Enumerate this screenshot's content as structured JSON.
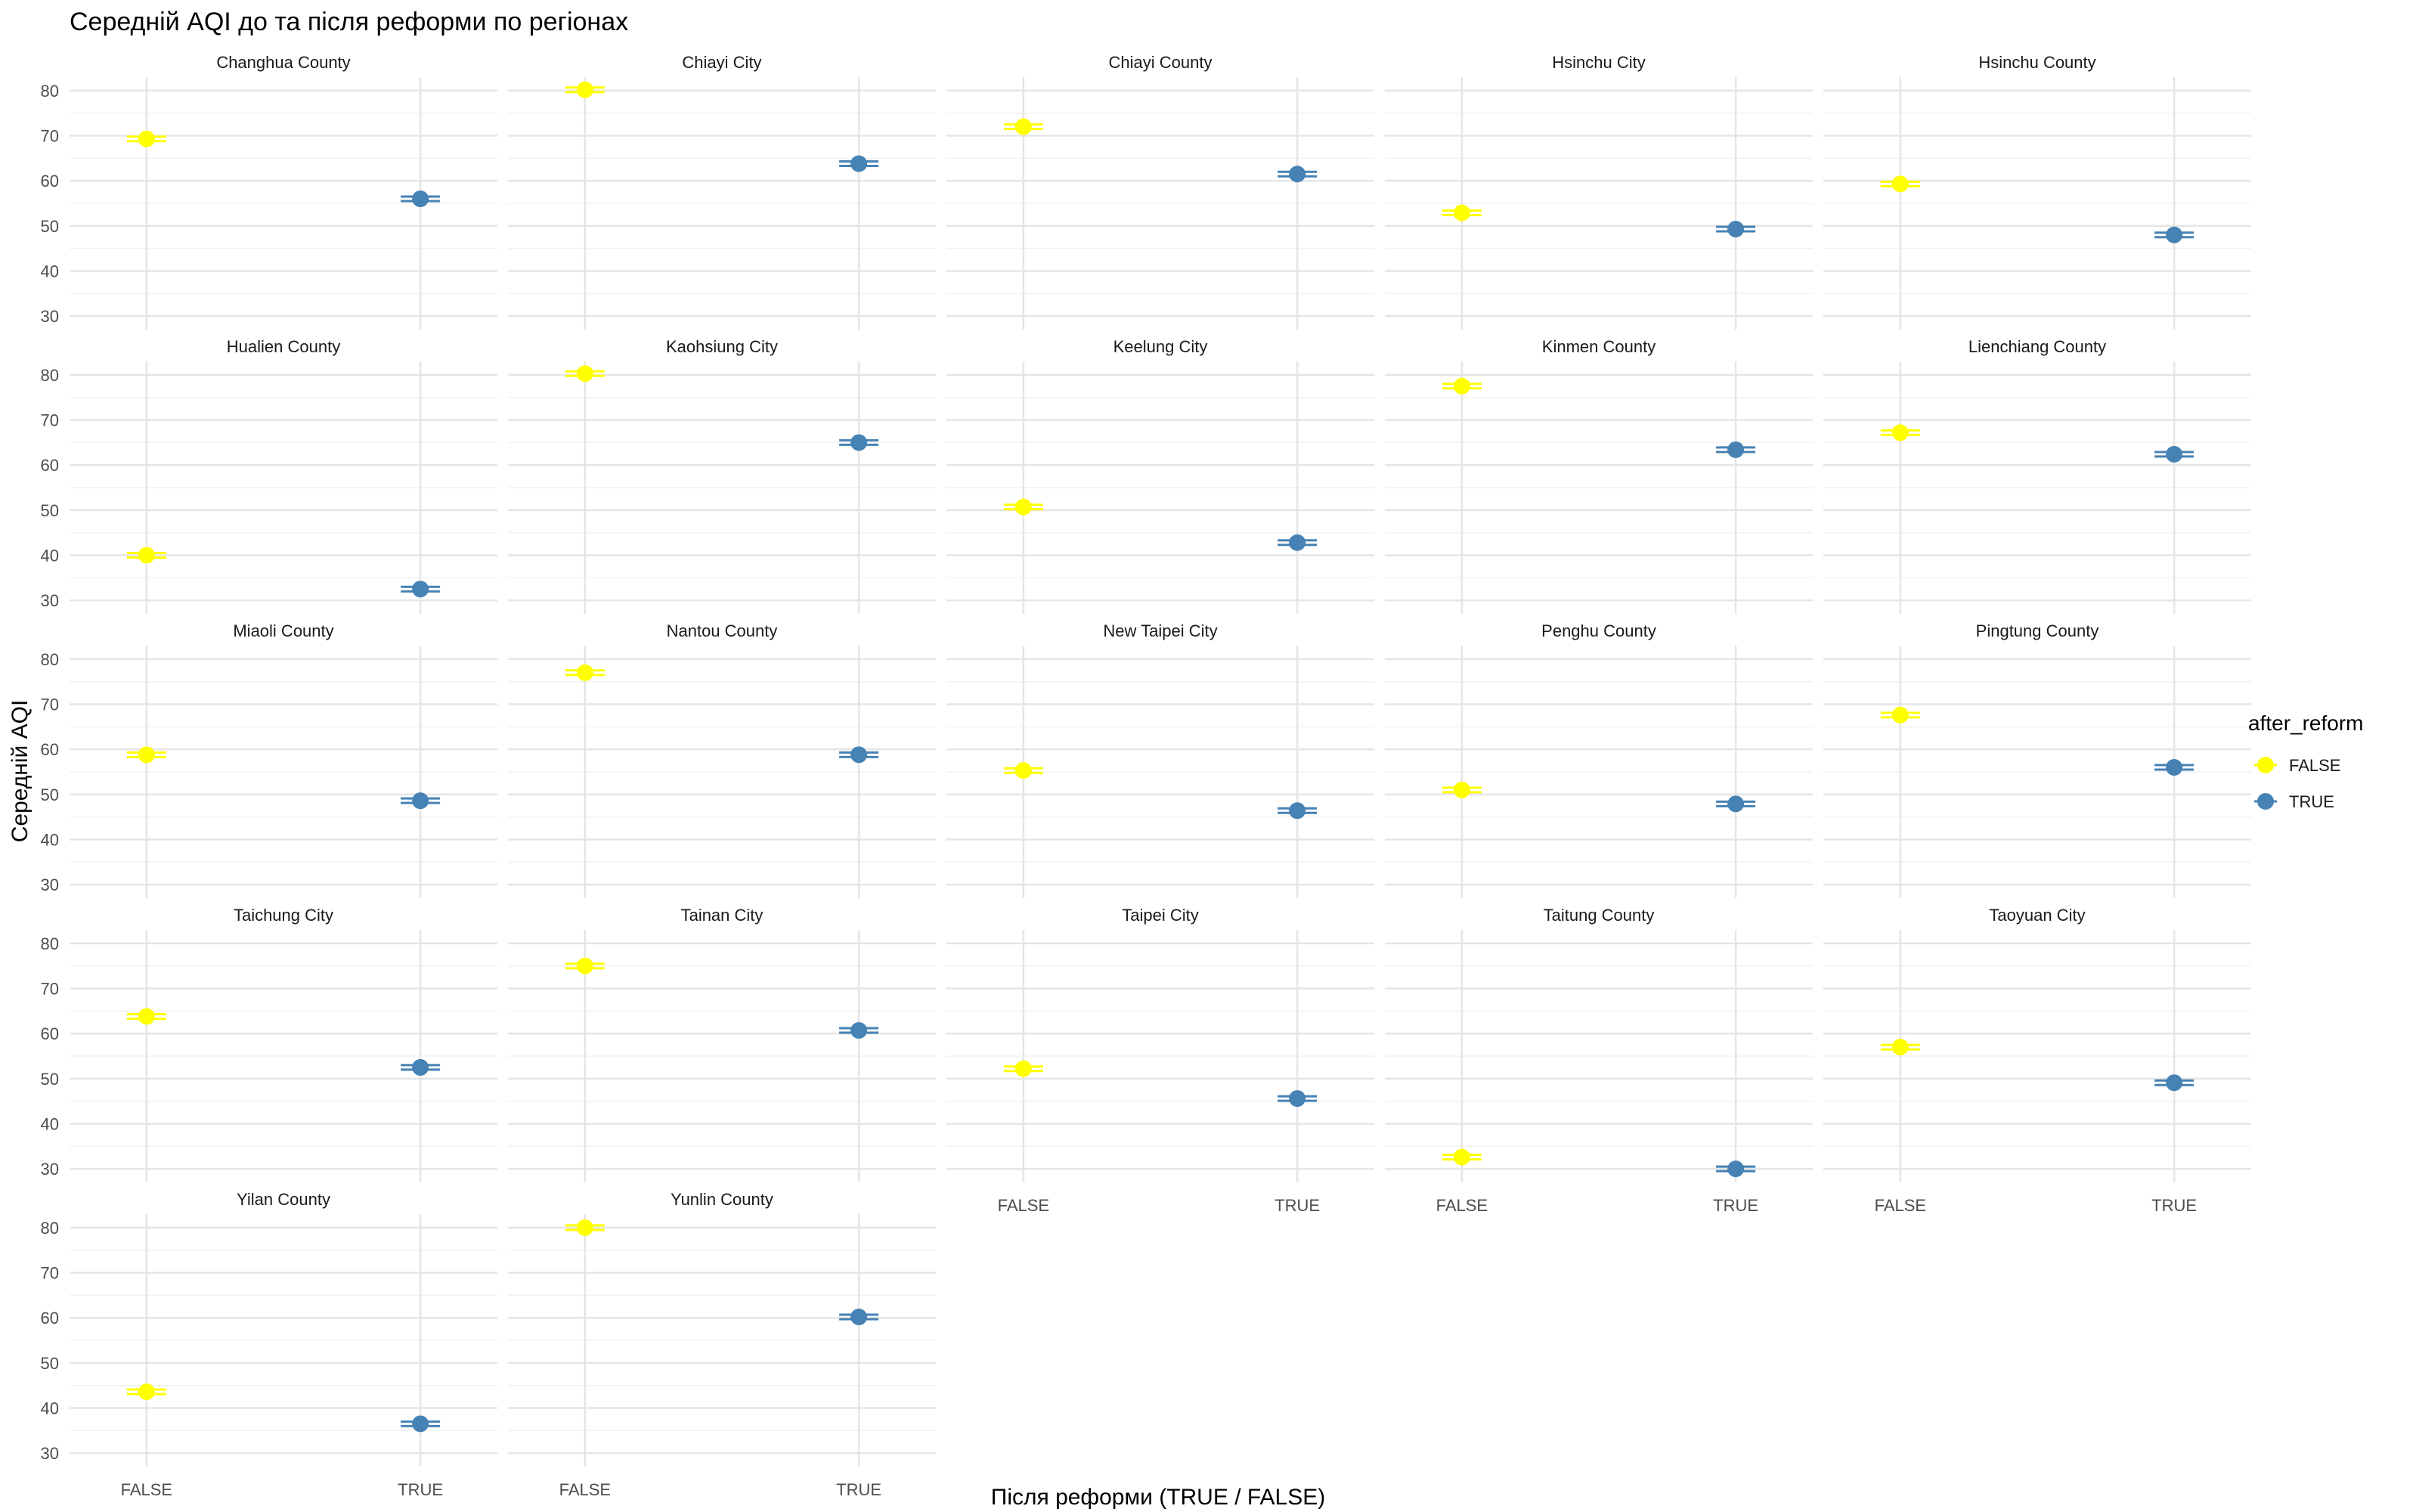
{
  "chart_data": {
    "type": "scatter",
    "title": "Середній AQI до та після реформи по регіонах",
    "xlabel": "Після реформи (TRUE / FALSE)",
    "ylabel": "Середній AQI",
    "categories": [
      "FALSE",
      "TRUE"
    ],
    "yticks": [
      30,
      40,
      50,
      60,
      70,
      80
    ],
    "ylim": [
      27,
      83
    ],
    "grid": true,
    "legend": {
      "title": "after_reform",
      "position": "right",
      "entries": [
        {
          "label": "FALSE",
          "color": "#FFFF00"
        },
        {
          "label": "TRUE",
          "color": "#4682B4"
        }
      ]
    },
    "panels": [
      {
        "name": "Changhua County",
        "values": [
          69.3,
          56.0
        ]
      },
      {
        "name": "Chiayi City",
        "values": [
          80.2,
          63.8
        ]
      },
      {
        "name": "Chiayi County",
        "values": [
          72.0,
          61.5
        ]
      },
      {
        "name": "Hsinchu City",
        "values": [
          52.9,
          49.3
        ]
      },
      {
        "name": "Hsinchu County",
        "values": [
          59.3,
          48.0
        ]
      },
      {
        "name": "Hualien County",
        "values": [
          40.0,
          32.5
        ]
      },
      {
        "name": "Kaohsiung City",
        "values": [
          80.3,
          65.0
        ]
      },
      {
        "name": "Keelung City",
        "values": [
          50.7,
          42.8
        ]
      },
      {
        "name": "Kinmen County",
        "values": [
          77.5,
          63.4
        ]
      },
      {
        "name": "Lienchiang County",
        "values": [
          67.2,
          62.4
        ]
      },
      {
        "name": "Miaoli County",
        "values": [
          58.8,
          48.6
        ]
      },
      {
        "name": "Nantou County",
        "values": [
          77.0,
          58.8
        ]
      },
      {
        "name": "New Taipei City",
        "values": [
          55.3,
          46.4
        ]
      },
      {
        "name": "Penghu County",
        "values": [
          51.0,
          47.9
        ]
      },
      {
        "name": "Pingtung County",
        "values": [
          67.6,
          56.0
        ]
      },
      {
        "name": "Taichung City",
        "values": [
          63.8,
          52.5
        ]
      },
      {
        "name": "Tainan City",
        "values": [
          75.0,
          60.7
        ]
      },
      {
        "name": "Taipei City",
        "values": [
          52.2,
          45.6
        ]
      },
      {
        "name": "Taitung County",
        "values": [
          32.6,
          30.0
        ]
      },
      {
        "name": "Taoyuan City",
        "values": [
          57.0,
          49.1
        ]
      },
      {
        "name": "Yilan County",
        "values": [
          43.6,
          36.5
        ]
      },
      {
        "name": "Yunlin County",
        "values": [
          80.0,
          60.2
        ]
      }
    ]
  }
}
